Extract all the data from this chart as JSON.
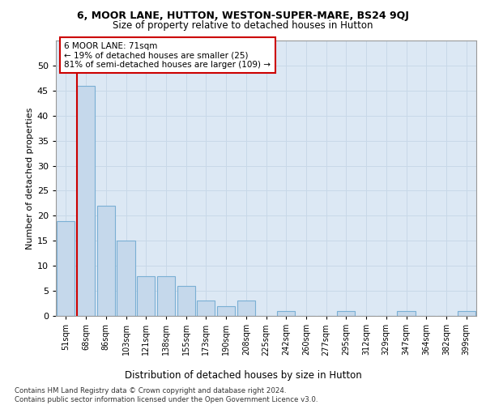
{
  "title_line1": "6, MOOR LANE, HUTTON, WESTON-SUPER-MARE, BS24 9QJ",
  "title_line2": "Size of property relative to detached houses in Hutton",
  "xlabel": "Distribution of detached houses by size in Hutton",
  "ylabel": "Number of detached properties",
  "categories": [
    "51sqm",
    "68sqm",
    "86sqm",
    "103sqm",
    "121sqm",
    "138sqm",
    "155sqm",
    "173sqm",
    "190sqm",
    "208sqm",
    "225sqm",
    "242sqm",
    "260sqm",
    "277sqm",
    "295sqm",
    "312sqm",
    "329sqm",
    "347sqm",
    "364sqm",
    "382sqm",
    "399sqm"
  ],
  "values": [
    19,
    46,
    22,
    15,
    8,
    8,
    6,
    3,
    2,
    3,
    0,
    1,
    0,
    0,
    1,
    0,
    0,
    1,
    0,
    0,
    1
  ],
  "bar_color": "#c5d8eb",
  "bar_edge_color": "#7aafd4",
  "highlight_line_color": "#cc0000",
  "annotation_text": "6 MOOR LANE: 71sqm\n← 19% of detached houses are smaller (25)\n81% of semi-detached houses are larger (109) →",
  "annotation_box_color": "#ffffff",
  "annotation_box_edge_color": "#cc0000",
  "ylim": [
    0,
    55
  ],
  "yticks": [
    0,
    5,
    10,
    15,
    20,
    25,
    30,
    35,
    40,
    45,
    50
  ],
  "footnote": "Contains HM Land Registry data © Crown copyright and database right 2024.\nContains public sector information licensed under the Open Government Licence v3.0.",
  "grid_color": "#c8d8e8",
  "background_color": "#dce8f4",
  "bar_width": 0.9
}
